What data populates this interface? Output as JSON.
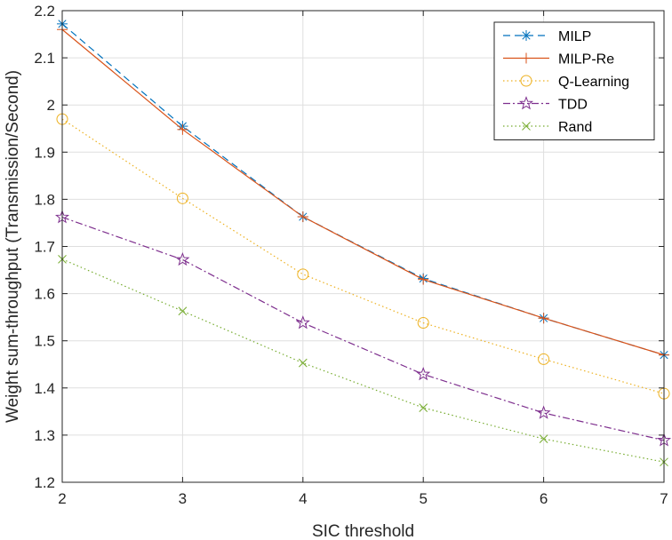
{
  "chart_data": {
    "type": "line",
    "xlabel": "SIC threshold",
    "ylabel": "Weight sum-throughput (Transmission/Second)",
    "x": [
      2,
      3,
      4,
      5,
      6,
      7
    ],
    "xlim": [
      2,
      7
    ],
    "ylim": [
      1.2,
      2.2
    ],
    "xticks": [
      "2",
      "3",
      "4",
      "5",
      "6",
      "7"
    ],
    "yticks": [
      "1.2",
      "1.3",
      "1.4",
      "1.5",
      "1.6",
      "1.7",
      "1.8",
      "1.9",
      "2",
      "2.1",
      "2.2"
    ],
    "grid": true,
    "legend_position": "top-right",
    "series": [
      {
        "name": "MILP",
        "values": [
          2.172,
          1.955,
          1.763,
          1.632,
          1.548,
          1.47
        ],
        "color": "#0072BD",
        "dash": "8,5",
        "marker": "asterisk"
      },
      {
        "name": "MILP-Re",
        "values": [
          2.16,
          1.948,
          1.763,
          1.63,
          1.548,
          1.47
        ],
        "color": "#D95319",
        "dash": "",
        "marker": "plus"
      },
      {
        "name": "Q-Learning",
        "values": [
          1.97,
          1.802,
          1.641,
          1.538,
          1.461,
          1.388
        ],
        "color": "#EDB120",
        "dash": "1.5,3",
        "marker": "circle"
      },
      {
        "name": "TDD",
        "values": [
          1.762,
          1.672,
          1.538,
          1.429,
          1.347,
          1.289
        ],
        "color": "#7E2F8E",
        "dash": "8,3,2,3",
        "marker": "star"
      },
      {
        "name": "Rand",
        "values": [
          1.673,
          1.563,
          1.453,
          1.358,
          1.292,
          1.243
        ],
        "color": "#77AC30",
        "dash": "1.5,3",
        "marker": "x"
      }
    ]
  }
}
